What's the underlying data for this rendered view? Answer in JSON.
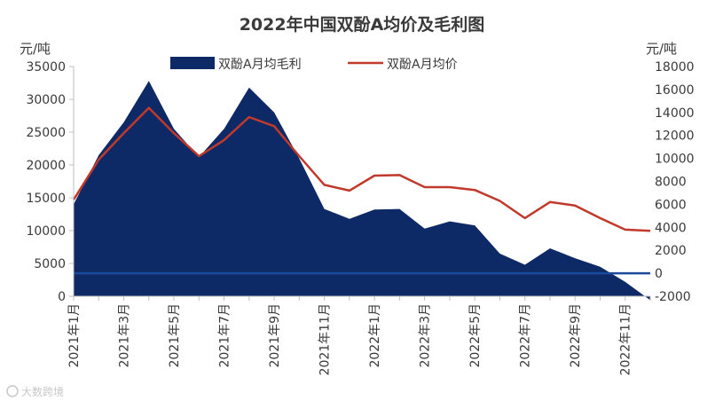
{
  "chart_data": {
    "type": "area+line",
    "title": "2022年中国双酚A均价及毛利图",
    "left_axis_unit": "元/吨",
    "right_axis_unit": "元/吨",
    "left_ylim": [
      0,
      35000
    ],
    "left_ticks": [
      0,
      5000,
      10000,
      15000,
      20000,
      25000,
      30000,
      35000
    ],
    "right_ylim": [
      -2000,
      18000
    ],
    "right_ticks": [
      -2000,
      0,
      2000,
      4000,
      6000,
      8000,
      10000,
      12000,
      14000,
      16000,
      18000
    ],
    "categories": [
      "2021年1月",
      "2021年2月",
      "2021年3月",
      "2021年4月",
      "2021年5月",
      "2021年6月",
      "2021年7月",
      "2021年8月",
      "2021年9月",
      "2021年10月",
      "2021年11月",
      "2021年12月",
      "2022年1月",
      "2022年2月",
      "2022年3月",
      "2022年4月",
      "2022年5月",
      "2022年6月",
      "2022年7月",
      "2022年8月",
      "2022年9月",
      "2022年10月",
      "2022年11月",
      "2022年12月"
    ],
    "x_tick_labels": [
      "2021年1月",
      "2021年3月",
      "2021年5月",
      "2021年7月",
      "2021年9月",
      "2021年11月",
      "2022年1月",
      "2022年3月",
      "2022年5月",
      "2022年7月",
      "2022年9月",
      "2022年11月"
    ],
    "x_tick_indices": [
      0,
      2,
      4,
      6,
      8,
      10,
      12,
      14,
      16,
      18,
      20,
      22
    ],
    "series": [
      {
        "name": "双酚A月均毛利",
        "type": "area",
        "axis": "left",
        "color": "#0d2a66",
        "values": [
          14000,
          21500,
          26500,
          32800,
          25500,
          21200,
          25500,
          31800,
          28000,
          21000,
          13300,
          11800,
          13200,
          13300,
          10300,
          11400,
          10800,
          6500,
          4800,
          7300,
          5800,
          4500,
          2200,
          -600
        ]
      },
      {
        "name": "双酚A月均价",
        "type": "line",
        "axis": "right",
        "color": "#c0392b",
        "values": [
          6400,
          9900,
          12200,
          14400,
          12200,
          10200,
          11600,
          13600,
          12800,
          10200,
          7700,
          7200,
          8500,
          8550,
          7500,
          7500,
          7250,
          6300,
          4800,
          6200,
          5900,
          4800,
          3800,
          3700
        ]
      }
    ]
  },
  "watermark": "大数跨境"
}
